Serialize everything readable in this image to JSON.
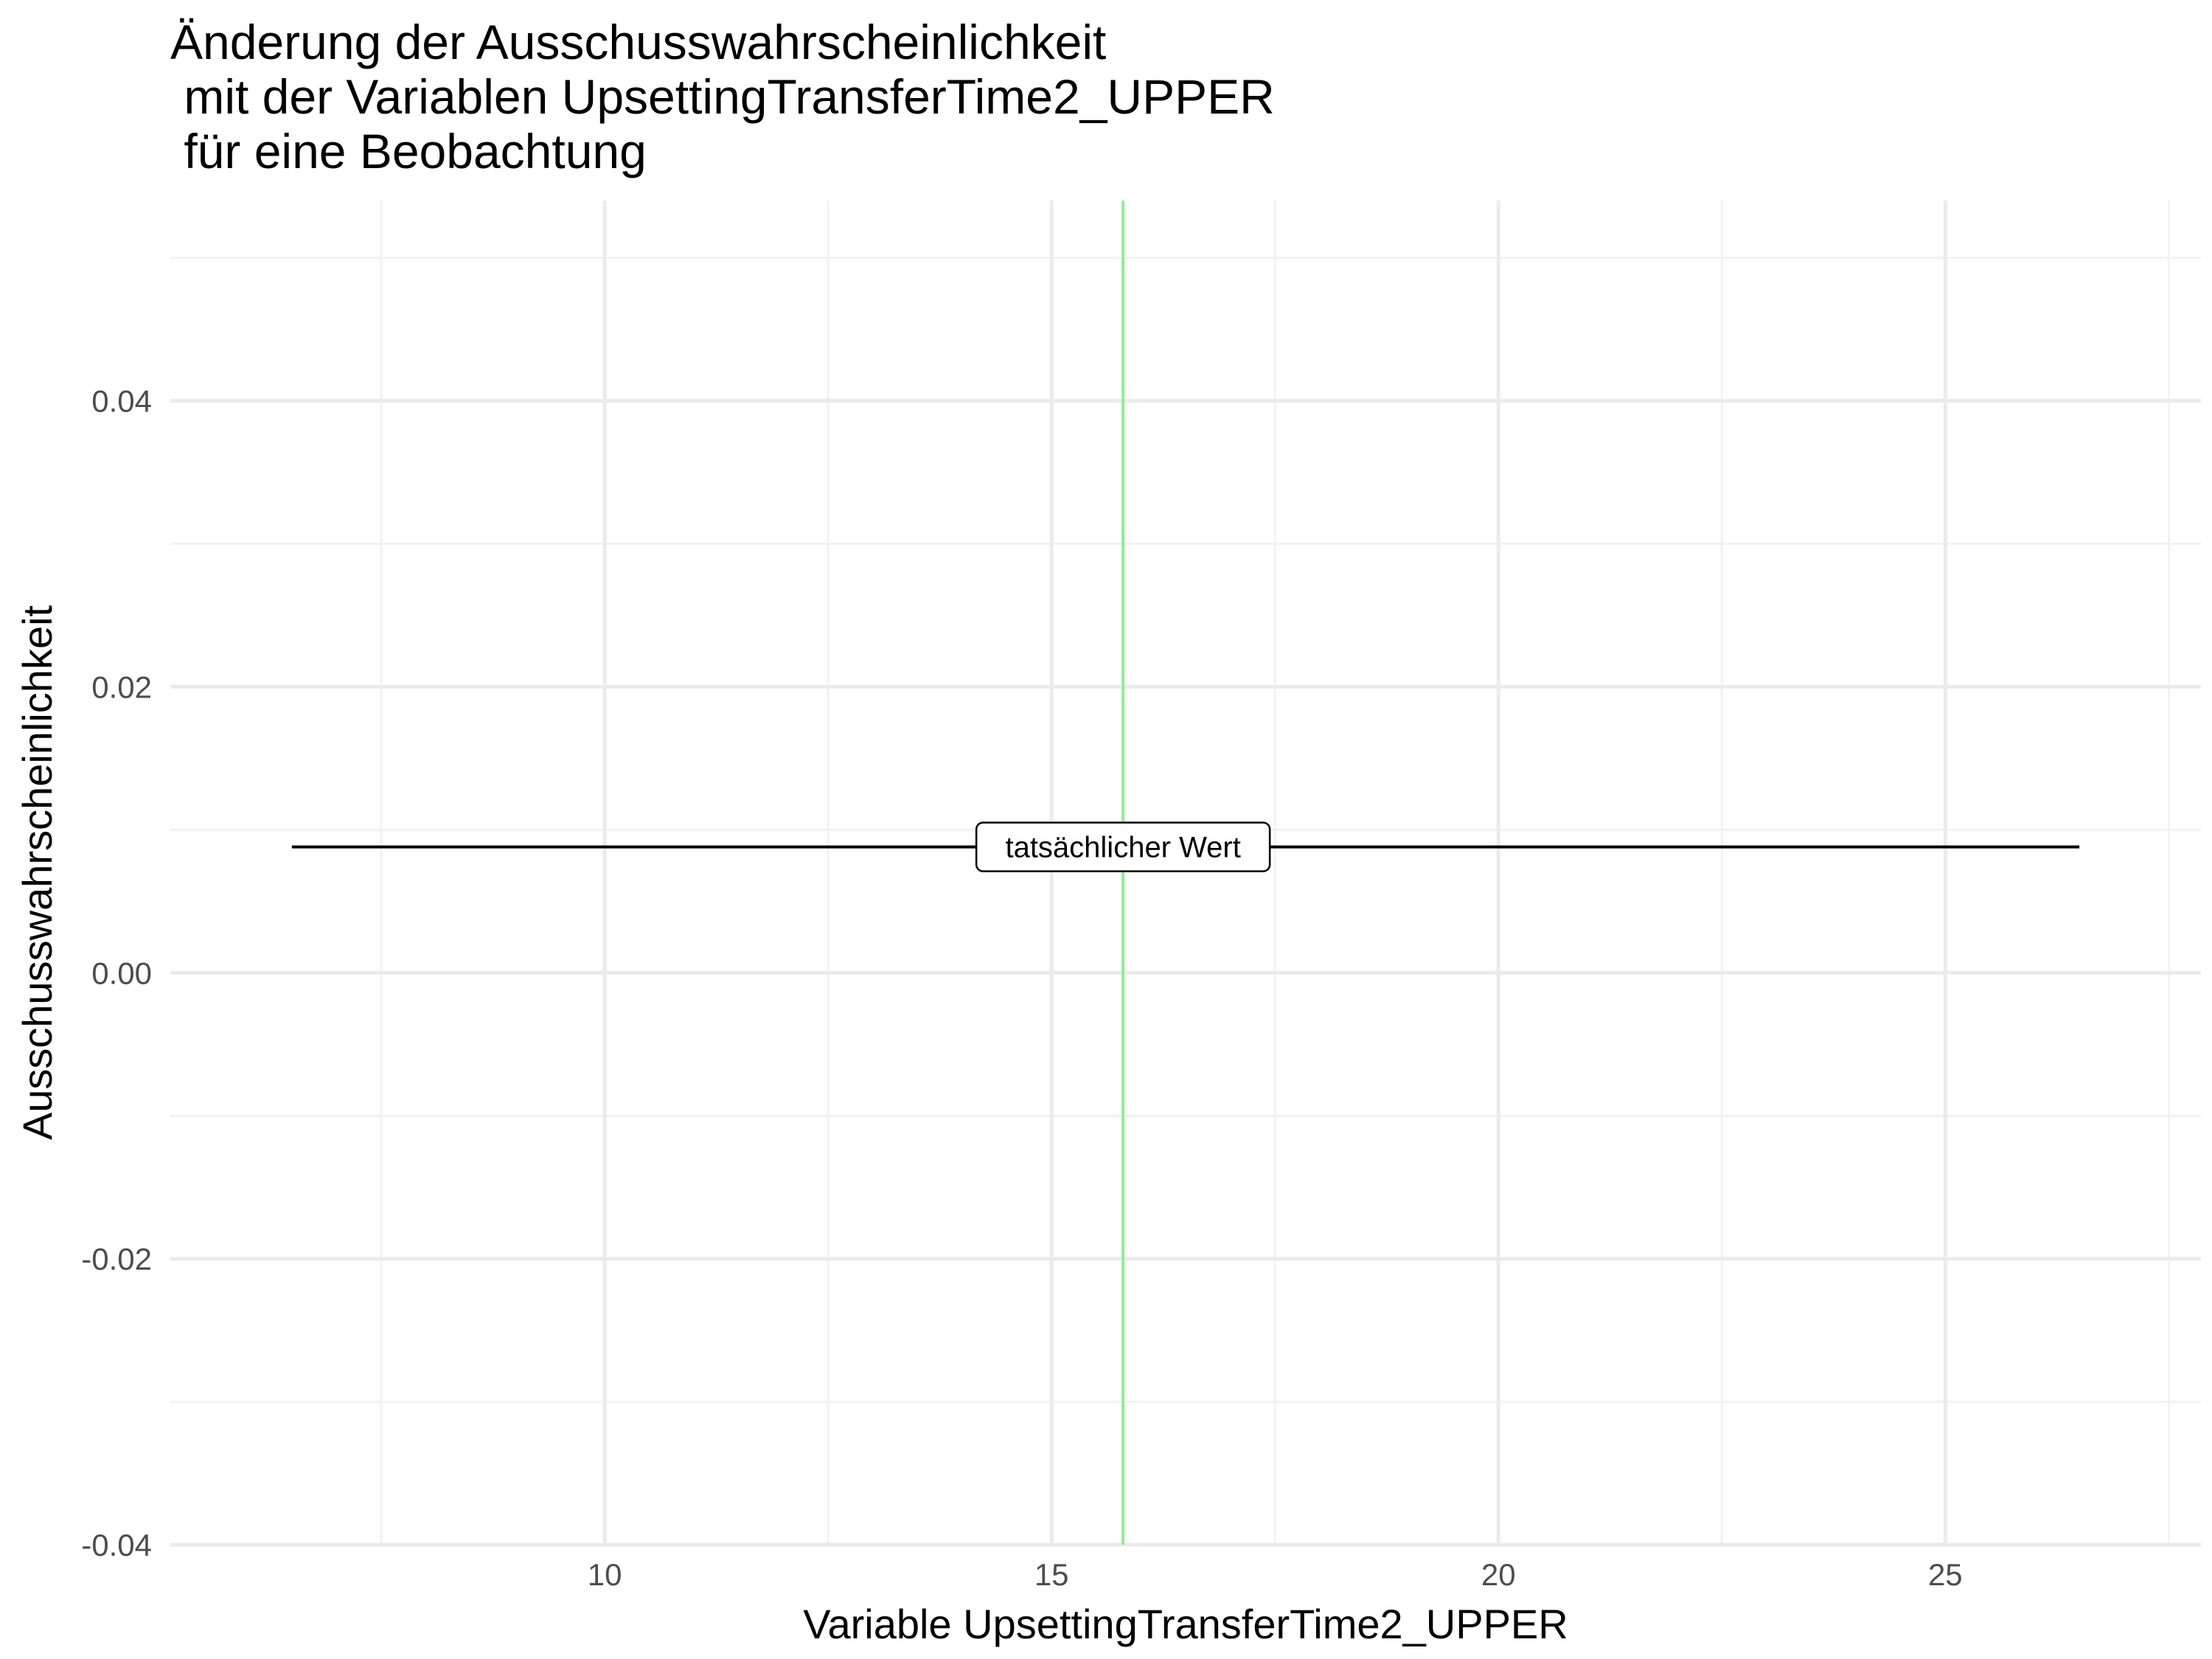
{
  "chart_data": {
    "type": "line",
    "title_lines": [
      "Änderung der Ausschusswahrscheinlichkeit",
      " mit der Variablen UpsettingTransferTime2_UPPER",
      " für eine Beobachtung"
    ],
    "xlabel": "Variable UpsettingTransferTime2_UPPER",
    "ylabel": "Ausschusswahrscheinlichkeit",
    "xlim": [
      5.14,
      27.86
    ],
    "ylim": [
      -0.04,
      0.054
    ],
    "x_ticks": [
      10,
      15,
      20,
      25
    ],
    "x_tick_labels": [
      "10",
      "15",
      "20",
      "25"
    ],
    "x_minor_ticks": [
      7.5,
      12.5,
      17.5,
      22.5,
      27.5
    ],
    "y_ticks": [
      -0.04,
      -0.02,
      0.0,
      0.02,
      0.04
    ],
    "y_tick_labels": [
      "-0.04",
      "-0.02",
      "0.00",
      "0.02",
      "0.04"
    ],
    "y_minor_ticks": [
      -0.03,
      -0.01,
      0.01,
      0.03,
      0.05
    ],
    "series": [
      {
        "x": [
          6.5,
          26.5
        ],
        "y": [
          0.0088,
          0.0088
        ],
        "color": "#000000"
      }
    ],
    "vline": {
      "x": 15.8,
      "color": "#90EE90"
    },
    "annotation": {
      "text": "tatsächlicher Wert",
      "x": 15.8,
      "y": 0.0088
    },
    "grid": true,
    "colors": {
      "grid_major": "#ebebeb",
      "grid_minor": "#f2f2f2",
      "tick_text": "#4d4d4d"
    }
  }
}
